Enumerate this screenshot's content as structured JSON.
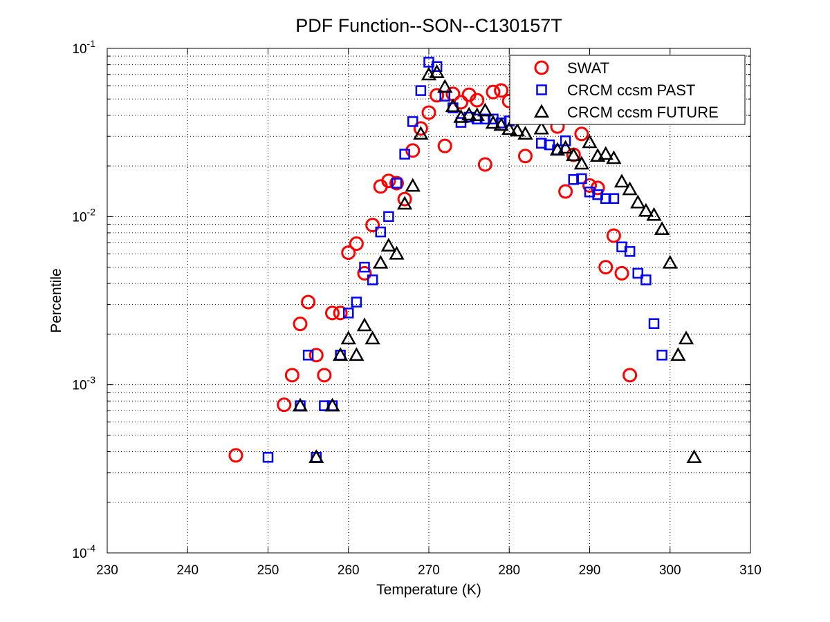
{
  "chart_data": {
    "type": "scatter",
    "title": "PDF Function--SON--C130157T",
    "xlabel": "Temperature (K)",
    "ylabel": "Percentile",
    "xlim": [
      230,
      310
    ],
    "ylim": [
      0.0001,
      0.1
    ],
    "yscale": "log",
    "grid": true,
    "legend_position": "top-right",
    "xticks": [
      "230",
      "240",
      "250",
      "260",
      "270",
      "280",
      "290",
      "300",
      "310"
    ],
    "yticks": [
      {
        "base": "10",
        "exp": "-4"
      },
      {
        "base": "10",
        "exp": "-3"
      },
      {
        "base": "10",
        "exp": "-2"
      },
      {
        "base": "10",
        "exp": "-1"
      }
    ],
    "series": [
      {
        "name": "SWAT",
        "marker": "circle",
        "color": "#ff0000",
        "x": [
          246,
          252,
          253,
          254,
          255,
          256,
          257,
          258,
          259,
          260,
          261,
          262,
          263,
          264,
          265,
          266,
          267,
          268,
          269,
          270,
          271,
          272,
          273,
          274,
          275,
          276,
          277,
          278,
          279,
          280,
          282,
          286,
          287,
          288,
          289,
          290,
          291,
          292,
          293,
          294,
          295
        ],
        "y": [
          0.00038,
          0.00076,
          0.00114,
          0.0023,
          0.0031,
          0.0015,
          0.00114,
          0.00267,
          0.00267,
          0.0061,
          0.0069,
          0.0046,
          0.0089,
          0.0151,
          0.0163,
          0.0158,
          0.0127,
          0.0247,
          0.0334,
          0.0415,
          0.0526,
          0.0263,
          0.0536,
          0.0478,
          0.053,
          0.0492,
          0.0204,
          0.055,
          0.0562,
          0.0486,
          0.0229,
          0.0343,
          0.0141,
          0.0233,
          0.031,
          0.0153,
          0.0148,
          0.005,
          0.0077,
          0.0046,
          0.00114
        ]
      },
      {
        "name": "CRCM ccsm PAST",
        "marker": "square",
        "color": "#0000ff",
        "x": [
          250,
          254,
          255,
          256,
          257,
          258,
          259,
          260,
          261,
          262,
          263,
          264,
          265,
          266,
          267,
          268,
          269,
          270,
          271,
          272,
          273,
          274,
          275,
          276,
          277,
          278,
          279,
          280,
          284,
          285,
          286,
          287,
          288,
          289,
          290,
          291,
          292,
          293,
          294,
          295,
          296,
          297,
          298,
          299
        ],
        "y": [
          0.00037,
          0.00075,
          0.0015,
          0.00037,
          0.00075,
          0.00075,
          0.0015,
          0.00267,
          0.0031,
          0.005,
          0.0042,
          0.0081,
          0.01,
          0.0158,
          0.0235,
          0.0367,
          0.0561,
          0.0828,
          0.078,
          0.052,
          0.0443,
          0.0363,
          0.039,
          0.038,
          0.038,
          0.038,
          0.036,
          0.037,
          0.0273,
          0.0267,
          0.0249,
          0.0282,
          0.0166,
          0.0168,
          0.014,
          0.0135,
          0.0128,
          0.0128,
          0.0066,
          0.0062,
          0.0046,
          0.0042,
          0.00231,
          0.0015
        ]
      },
      {
        "name": "CRCM ccsm FUTURE",
        "marker": "triangle",
        "color": "#000000",
        "x": [
          254,
          256,
          258,
          259,
          260,
          261,
          262,
          263,
          264,
          265,
          266,
          267,
          268,
          269,
          270,
          271,
          272,
          273,
          274,
          275,
          276,
          277,
          278,
          279,
          280,
          281,
          282,
          284,
          286,
          287,
          288,
          289,
          290,
          291,
          292,
          293,
          294,
          295,
          296,
          297,
          298,
          299,
          300,
          301,
          302,
          303
        ],
        "y": [
          0.00075,
          0.00037,
          0.00075,
          0.0015,
          0.00188,
          0.0015,
          0.00225,
          0.00188,
          0.0053,
          0.0067,
          0.006,
          0.0119,
          0.0152,
          0.031,
          0.0698,
          0.0721,
          0.0589,
          0.0452,
          0.039,
          0.0403,
          0.04,
          0.0426,
          0.036,
          0.035,
          0.0331,
          0.0324,
          0.031,
          0.0333,
          0.0249,
          0.0256,
          0.0231,
          0.0206,
          0.0276,
          0.0229,
          0.0235,
          0.0222,
          0.0161,
          0.0145,
          0.0121,
          0.0108,
          0.0102,
          0.0084,
          0.0053,
          0.0015,
          0.00188,
          0.00037
        ]
      }
    ]
  }
}
